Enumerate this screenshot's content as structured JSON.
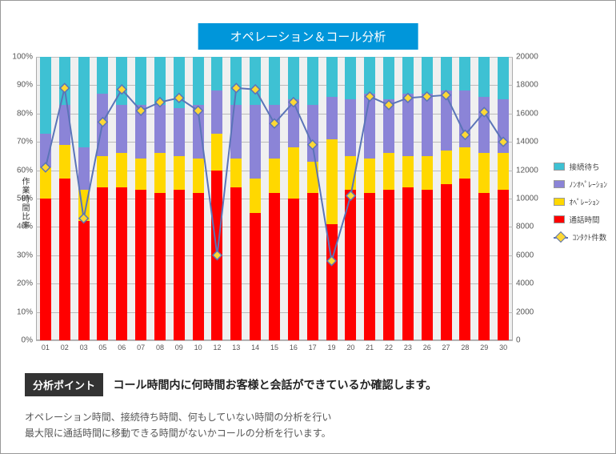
{
  "title": "オペレーション＆コール分析",
  "y_axis_label": "作業時間比率",
  "y_left": {
    "min": 0,
    "max": 100,
    "step": 10,
    "suffix": "%"
  },
  "y_right": {
    "min": 0,
    "max": 20000,
    "step": 2000,
    "suffix": ""
  },
  "categories": [
    "01",
    "02",
    "03",
    "05",
    "06",
    "07",
    "08",
    "09",
    "10",
    "12",
    "13",
    "14",
    "15",
    "16",
    "17",
    "19",
    "20",
    "21",
    "22",
    "23",
    "26",
    "27",
    "28",
    "29",
    "30"
  ],
  "stacks": [
    {
      "key": "tsuwa",
      "label": "通話時間",
      "color": "#ff0000"
    },
    {
      "key": "ope",
      "label": "ｵﾍﾟﾚｰｼｮﾝ",
      "color": "#ffd800"
    },
    {
      "key": "nonope",
      "label": "ﾉﾝｵﾍﾟﾚｰｼｮﾝ",
      "color": "#8b84d7"
    },
    {
      "key": "setsuzoku",
      "label": "接続待ち",
      "color": "#3ec1d3"
    }
  ],
  "stack_data": {
    "tsuwa": [
      50,
      57,
      42,
      54,
      54,
      53,
      52,
      53,
      52,
      60,
      54,
      45,
      52,
      50,
      52,
      41,
      53,
      52,
      53,
      54,
      53,
      55,
      57,
      52,
      53
    ],
    "ope": [
      11,
      12,
      11,
      11,
      12,
      11,
      14,
      12,
      12,
      13,
      10,
      12,
      12,
      18,
      11,
      30,
      12,
      12,
      13,
      11,
      12,
      12,
      11,
      14,
      13
    ],
    "nonope": [
      12,
      14,
      15,
      22,
      17,
      19,
      17,
      17,
      19,
      15,
      19,
      26,
      19,
      17,
      20,
      15,
      20,
      23,
      19,
      22,
      22,
      21,
      20,
      20,
      19
    ],
    "setsuzoku": [
      27,
      17,
      32,
      13,
      17,
      17,
      17,
      18,
      17,
      12,
      17,
      17,
      17,
      15,
      17,
      14,
      15,
      13,
      15,
      13,
      13,
      12,
      12,
      14,
      15
    ]
  },
  "line": {
    "label": "ｺﾝﾀｸﾄ件数",
    "color": "#5b74b8",
    "marker_fill": "#fdd835",
    "data": [
      12200,
      17800,
      8600,
      15400,
      17700,
      16200,
      16800,
      17100,
      16200,
      6000,
      17800,
      17700,
      15300,
      16800,
      13800,
      5600,
      10200,
      17200,
      16600,
      17100,
      17200,
      17300,
      14500,
      16100,
      14000
    ]
  },
  "legend_order": [
    "setsuzoku",
    "nonope",
    "ope",
    "tsuwa",
    "__line__"
  ],
  "colors": {
    "plot_bg": "#f0f0f0",
    "grid": "#bbbbbb"
  },
  "analysis_point_label": "分析ポイント",
  "analysis_point_text": "コール時間内に何時間お客様と会話ができているか確認します。",
  "description_line1": "オペレーション時間、接続待ち時間、何もしていない時間の分析を行い",
  "description_line2": "最大限に通話時間に移動できる時間がないかコールの分析を行います。"
}
